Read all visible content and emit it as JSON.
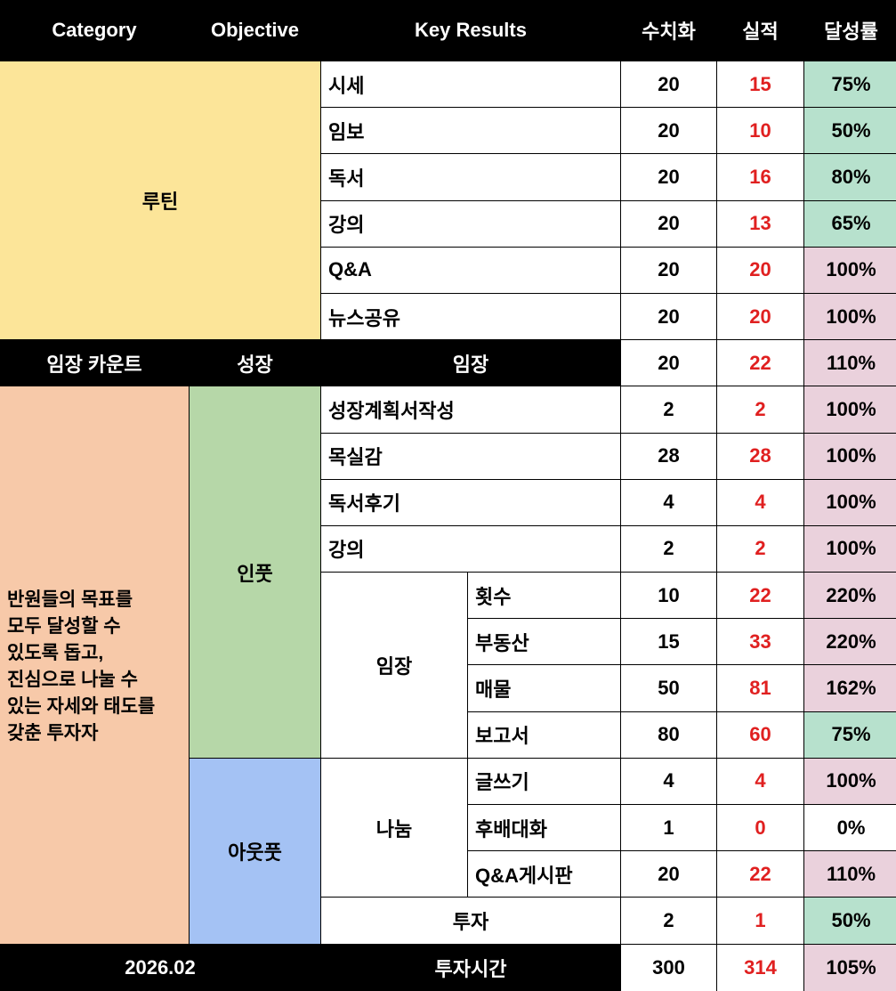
{
  "header": [
    "Category",
    "Objective",
    "Key Results",
    "수치화",
    "실적",
    "달성률"
  ],
  "routine": {
    "category": "루틴",
    "rows": [
      {
        "kr": "시세",
        "target": 20,
        "actual": 15,
        "rate": "75%",
        "fill": "#b7e1cd"
      },
      {
        "kr": "임보",
        "target": 20,
        "actual": 10,
        "rate": "50%",
        "fill": "#b7e1cd"
      },
      {
        "kr": "독서",
        "target": 20,
        "actual": 16,
        "rate": "80%",
        "fill": "#b7e1cd"
      },
      {
        "kr": "강의",
        "target": 20,
        "actual": 13,
        "rate": "65%",
        "fill": "#b7e1cd"
      },
      {
        "kr": "Q&A",
        "target": 20,
        "actual": 20,
        "rate": "100%",
        "fill": "#ead1dc"
      },
      {
        "kr": "뉴스공유",
        "target": 20,
        "actual": 20,
        "rate": "100%",
        "fill": "#ead1dc"
      }
    ]
  },
  "visit_count": {
    "category": "임장 카운트",
    "objective": "성장",
    "kr": "임장",
    "target": 20,
    "actual": 22,
    "rate": "110%",
    "fill": "#ead1dc"
  },
  "main": {
    "category": "반원들의 목표를\n모두 달성할 수\n있도록 돕고,\n진심으로 나눌 수\n있는 자세와 태도를\n갖춘 투자자",
    "input": {
      "objective": "인풋",
      "rows": [
        {
          "kr": "성장계획서작성",
          "target": 2,
          "actual": 2,
          "rate": "100%",
          "fill": "#ead1dc"
        },
        {
          "kr": "목실감",
          "target": 28,
          "actual": 28,
          "rate": "100%",
          "fill": "#ead1dc"
        },
        {
          "kr": "독서후기",
          "target": 4,
          "actual": 4,
          "rate": "100%",
          "fill": "#ead1dc"
        },
        {
          "kr": "강의",
          "target": 2,
          "actual": 2,
          "rate": "100%",
          "fill": "#ead1dc"
        }
      ],
      "group": {
        "name": "임장",
        "rows": [
          {
            "kr": "횟수",
            "target": 10,
            "actual": 22,
            "rate": "220%",
            "fill": "#ead1dc"
          },
          {
            "kr": "부동산",
            "target": 15,
            "actual": 33,
            "rate": "220%",
            "fill": "#ead1dc"
          },
          {
            "kr": "매물",
            "target": 50,
            "actual": 81,
            "rate": "162%",
            "fill": "#ead1dc"
          },
          {
            "kr": "보고서",
            "target": 80,
            "actual": 60,
            "rate": "75%",
            "fill": "#b7e1cd"
          }
        ]
      }
    },
    "output": {
      "objective": "아웃풋",
      "group": {
        "name": "나눔",
        "rows": [
          {
            "kr": "글쓰기",
            "target": 4,
            "actual": 4,
            "rate": "100%",
            "fill": "#ead1dc"
          },
          {
            "kr": "후배대화",
            "target": 1,
            "actual": 0,
            "rate": "0%",
            "fill": "#ffffff"
          },
          {
            "kr": "Q&A게시판",
            "target": 20,
            "actual": 22,
            "rate": "110%",
            "fill": "#ead1dc"
          }
        ]
      },
      "rows": [
        {
          "kr": "투자",
          "target": 2,
          "actual": 1,
          "rate": "50%",
          "fill": "#b7e1cd"
        }
      ]
    }
  },
  "footer": {
    "date": "2026.02",
    "kr": "투자시간",
    "target": 300,
    "actual": 314,
    "rate": "105%",
    "fill": "#ead1dc"
  }
}
